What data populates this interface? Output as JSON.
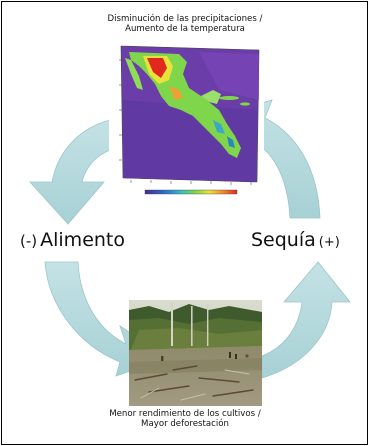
{
  "top_caption": {
    "line1": "Disminución de las precipitaciones /",
    "line2": "Aumento de la temperatura"
  },
  "bottom_caption": {
    "line1": "Menor rendimiento de los cultivos /",
    "line2": "Mayor deforestación"
  },
  "left_label": {
    "sign": "(-)",
    "text": "Alimento"
  },
  "right_label": {
    "text": "Sequía",
    "sign": "(+)"
  },
  "map_image": {
    "icon": "central-america-climate-map",
    "colors": {
      "background": "#6a3da8",
      "land_green": "#7fd64a",
      "hot_red": "#e0281e",
      "warm_yellow": "#e8e23a"
    }
  },
  "photo_image": {
    "icon": "deforested-land-photo"
  },
  "arrow_color": "#b5d9dc"
}
